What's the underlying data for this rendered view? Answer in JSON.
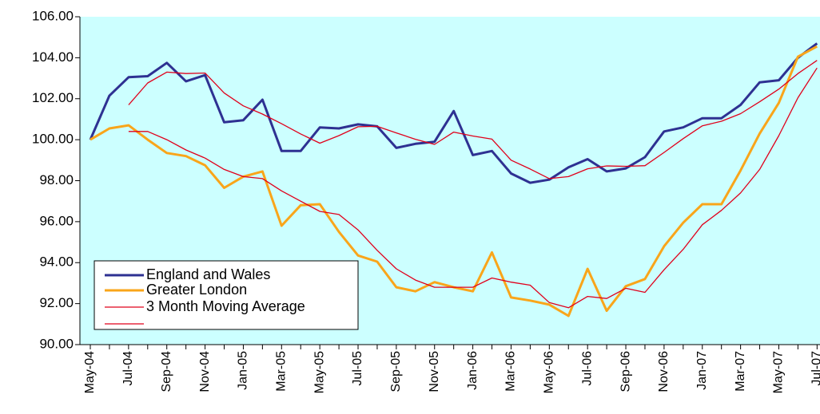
{
  "chart_data": {
    "type": "line",
    "categories": [
      "May-04",
      null,
      "Jul-04",
      null,
      "Sep-04",
      null,
      "Nov-04",
      null,
      "Jan-05",
      null,
      "Mar-05",
      null,
      "May-05",
      null,
      "Jul-05",
      null,
      "Sep-05",
      null,
      "Nov-05",
      null,
      "Jan-06",
      null,
      "Mar-06",
      null,
      "May-06",
      null,
      "Jul-06",
      null,
      "Sep-06",
      null,
      "Nov-06",
      null,
      "Jan-07",
      null,
      "Mar-07",
      null,
      "May-07",
      null,
      "Jul-07"
    ],
    "series": [
      {
        "name": "England and Wales",
        "color": "#2e3192",
        "width": 3,
        "values": [
          100.0,
          102.15,
          103.05,
          103.1,
          103.75,
          102.85,
          103.15,
          100.85,
          100.95,
          101.95,
          99.45,
          99.45,
          100.6,
          100.55,
          100.75,
          100.65,
          99.6,
          99.8,
          99.9,
          101.4,
          99.25,
          99.45,
          98.35,
          97.9,
          98.05,
          98.65,
          99.05,
          98.45,
          98.6,
          99.15,
          100.4,
          100.6,
          101.05,
          101.05,
          101.7,
          102.8,
          102.9,
          104.0,
          104.7
        ]
      },
      {
        "name": "Greater London",
        "color": "#f9a51a",
        "width": 3,
        "values": [
          100.0,
          100.55,
          100.7,
          100.0,
          99.35,
          99.2,
          98.75,
          97.65,
          98.2,
          98.45,
          95.8,
          96.8,
          96.85,
          95.5,
          94.35,
          94.05,
          92.8,
          92.6,
          93.05,
          92.8,
          92.6,
          94.5,
          92.3,
          92.15,
          91.95,
          91.4,
          93.7,
          91.65,
          92.85,
          93.2,
          94.8,
          95.95,
          96.85,
          96.85,
          98.5,
          100.3,
          101.8,
          104.05,
          104.55
        ]
      },
      {
        "name": "3 Month Moving Average",
        "color": "#e0001b",
        "width": 1.3,
        "values": [
          null,
          null,
          101.7,
          102.77,
          103.3,
          103.23,
          103.25,
          102.28,
          101.65,
          101.25,
          100.78,
          100.28,
          99.83,
          100.2,
          100.63,
          100.65,
          100.33,
          100.02,
          99.77,
          100.37,
          100.18,
          100.03,
          99.0,
          98.57,
          98.1,
          98.2,
          98.58,
          98.72,
          98.7,
          98.73,
          99.38,
          100.05,
          100.68,
          100.9,
          101.27,
          101.85,
          102.47,
          103.23,
          103.87
        ]
      },
      {
        "color": "#e0001b",
        "width": 1.3,
        "values": [
          null,
          null,
          100.4,
          100.4,
          100.0,
          99.5,
          99.1,
          98.55,
          98.2,
          98.1,
          97.5,
          97.0,
          96.5,
          96.35,
          95.6,
          94.6,
          93.7,
          93.15,
          92.8,
          92.8,
          92.8,
          93.25,
          93.05,
          92.9,
          92.05,
          91.8,
          92.35,
          92.25,
          92.75,
          92.55,
          93.65,
          94.65,
          95.85,
          96.55,
          97.4,
          98.55,
          100.2,
          102.05,
          103.5
        ]
      }
    ],
    "ylim": [
      90,
      106
    ],
    "yticks": [
      {
        "value": 90,
        "label": "90.00"
      },
      {
        "value": 92,
        "label": "92.00"
      },
      {
        "value": 94,
        "label": "94.00"
      },
      {
        "value": 96,
        "label": "96.00"
      },
      {
        "value": 98,
        "label": "98.00"
      },
      {
        "value": 100,
        "label": "100.00"
      },
      {
        "value": 102,
        "label": "102.00"
      },
      {
        "value": 104,
        "label": "104.00"
      },
      {
        "value": 106,
        "label": "106.00"
      }
    ],
    "background": "#ccffff"
  }
}
